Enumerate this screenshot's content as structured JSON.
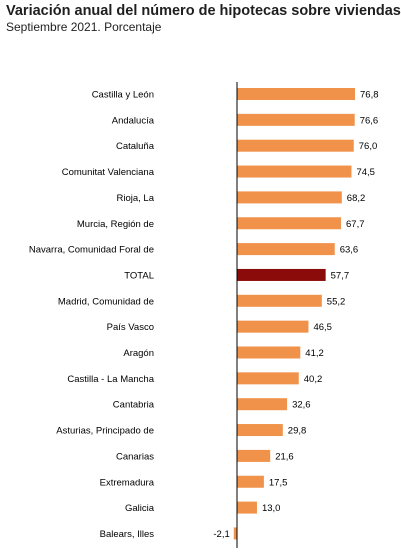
{
  "chart_data": {
    "type": "bar",
    "orientation": "horizontal",
    "title": "Variación anual del número de hipotecas sobre viviendas",
    "subtitle": "Septiembre 2021. Porcentaje",
    "categories": [
      "Castilla y León",
      "Andalucía",
      "Cataluña",
      "Comunitat Valenciana",
      "Rioja, La",
      "Murcia, Región de",
      "Navarra, Comunidad Foral de",
      "TOTAL",
      "Madrid, Comunidad de",
      "País Vasco",
      "Aragón",
      "Castilla - La Mancha",
      "Cantabria",
      "Asturias, Principado de",
      "Canarias",
      "Extremadura",
      "Galicia",
      "Balears, Illes"
    ],
    "values": [
      76.8,
      76.6,
      76.0,
      74.5,
      68.2,
      67.7,
      63.6,
      57.7,
      55.2,
      46.5,
      41.2,
      40.2,
      32.6,
      29.8,
      21.6,
      17.5,
      13.0,
      -2.1
    ],
    "value_labels": [
      "76,8",
      "76,6",
      "76,0",
      "74,5",
      "68,2",
      "67,7",
      "63,6",
      "57,7",
      "55,2",
      "46,5",
      "41,2",
      "40,2",
      "32,6",
      "29,8",
      "21,6",
      "17,5",
      "13,0",
      "-2,1"
    ],
    "highlight_category": "TOTAL",
    "xlim": [
      -2.1,
      76.8
    ],
    "grid": false,
    "legend": "none",
    "colors": {
      "bar": "#f0924a",
      "highlight": "#8b0a0a",
      "axis": "#000000",
      "text": "#000000",
      "title": "#1f1f1f"
    }
  }
}
